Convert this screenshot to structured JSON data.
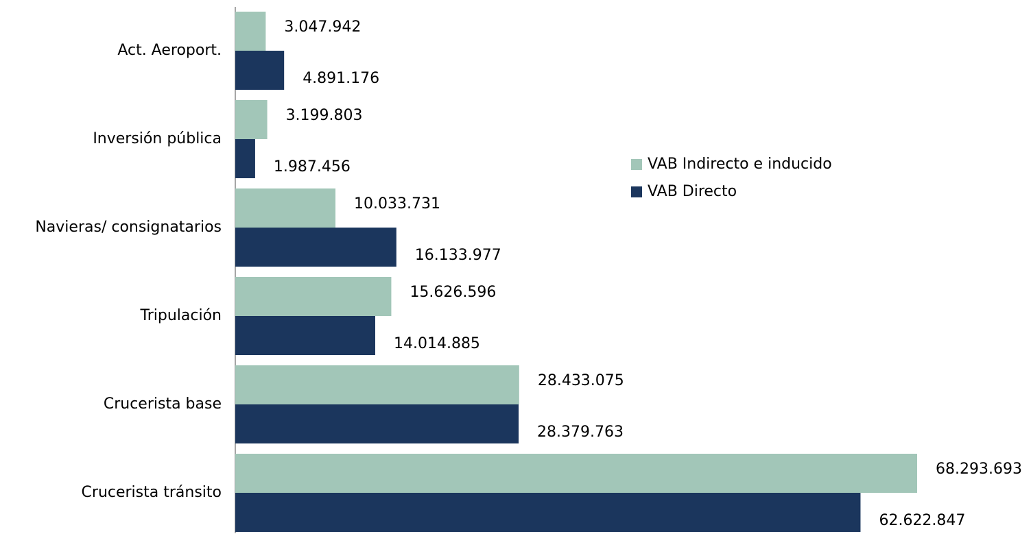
{
  "chart_data": {
    "type": "bar",
    "orientation": "horizontal",
    "categories": [
      "Act. Aeroport.",
      "Inversión pública",
      "Navieras/ consignatarios",
      "Tripulación",
      "Crucerista base",
      "Crucerista tránsito"
    ],
    "series": [
      {
        "name": "VAB Indirecto e inducido",
        "color": "#a2c6b8",
        "values": [
          3047942,
          3199803,
          10033731,
          15626596,
          28433075,
          68293693
        ],
        "value_labels": [
          "3.047.942",
          "3.199.803",
          "10.033.731",
          "15.626.596",
          "28.433.075",
          "68.293.693"
        ]
      },
      {
        "name": "VAB Directo",
        "color": "#1b365d",
        "values": [
          4891176,
          1987456,
          16133977,
          14014885,
          28379763,
          62622847
        ],
        "value_labels": [
          "4.891.176",
          "1.987.456",
          "16.133.977",
          "14.014.885",
          "28.379.763",
          "62.622.847"
        ]
      }
    ],
    "xlim": [
      0,
      70000000
    ],
    "legend": "right"
  }
}
